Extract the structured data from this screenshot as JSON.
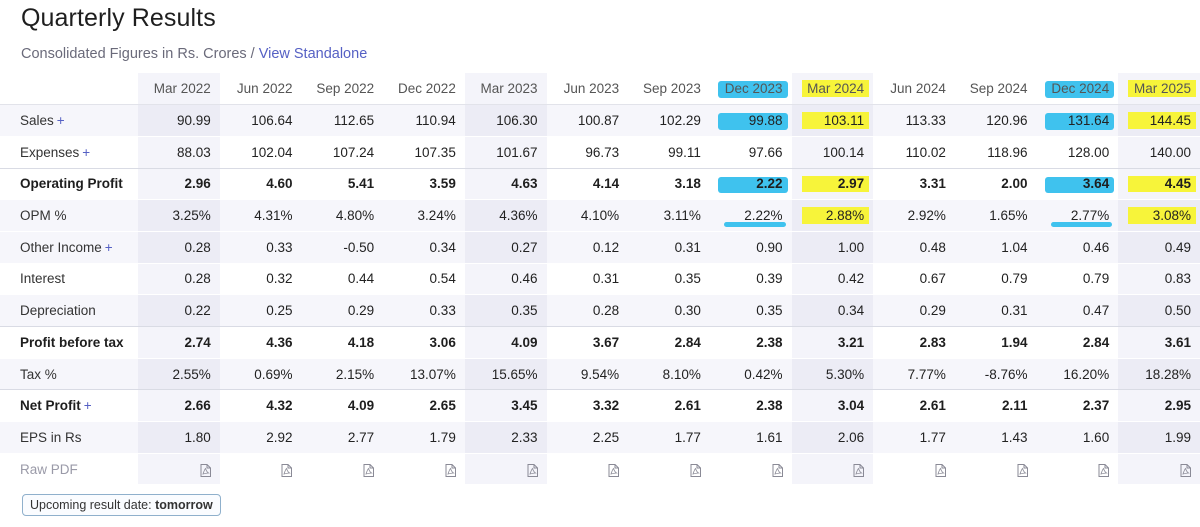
{
  "header": {
    "title": "Quarterly Results",
    "subtitle": "Consolidated Figures in Rs. Crores",
    "separator": "/",
    "view_standalone": "View Standalone"
  },
  "table": {
    "columns": [
      "Mar 2022",
      "Jun 2022",
      "Sep 2022",
      "Dec 2022",
      "Mar 2023",
      "Jun 2023",
      "Sep 2023",
      "Dec 2023",
      "Mar 2024",
      "Jun 2024",
      "Sep 2024",
      "Dec 2024",
      "Mar 2025"
    ],
    "rows": [
      {
        "label": "Sales",
        "plus": "+",
        "values": [
          "90.99",
          "106.64",
          "112.65",
          "110.94",
          "106.30",
          "100.87",
          "102.29",
          "99.88",
          "103.11",
          "113.33",
          "120.96",
          "131.64",
          "144.45"
        ]
      },
      {
        "label": "Expenses",
        "plus": "+",
        "values": [
          "88.03",
          "102.04",
          "107.24",
          "107.35",
          "101.67",
          "96.73",
          "99.11",
          "97.66",
          "100.14",
          "110.02",
          "118.96",
          "128.00",
          "140.00"
        ]
      },
      {
        "label": "Operating Profit",
        "values": [
          "2.96",
          "4.60",
          "5.41",
          "3.59",
          "4.63",
          "4.14",
          "3.18",
          "2.22",
          "2.97",
          "3.31",
          "2.00",
          "3.64",
          "4.45"
        ]
      },
      {
        "label": "OPM %",
        "values": [
          "3.25%",
          "4.31%",
          "4.80%",
          "3.24%",
          "4.36%",
          "4.10%",
          "3.11%",
          "2.22%",
          "2.88%",
          "2.92%",
          "1.65%",
          "2.77%",
          "3.08%"
        ]
      },
      {
        "label": "Other Income",
        "plus": "+",
        "values": [
          "0.28",
          "0.33",
          "-0.50",
          "0.34",
          "0.27",
          "0.12",
          "0.31",
          "0.90",
          "1.00",
          "0.48",
          "1.04",
          "0.46",
          "0.49"
        ]
      },
      {
        "label": "Interest",
        "values": [
          "0.28",
          "0.32",
          "0.44",
          "0.54",
          "0.46",
          "0.31",
          "0.35",
          "0.39",
          "0.42",
          "0.67",
          "0.79",
          "0.79",
          "0.83"
        ]
      },
      {
        "label": "Depreciation",
        "values": [
          "0.22",
          "0.25",
          "0.29",
          "0.33",
          "0.35",
          "0.28",
          "0.30",
          "0.35",
          "0.34",
          "0.29",
          "0.31",
          "0.47",
          "0.50"
        ]
      },
      {
        "label": "Profit before tax",
        "values": [
          "2.74",
          "4.36",
          "4.18",
          "3.06",
          "4.09",
          "3.67",
          "2.84",
          "2.38",
          "3.21",
          "2.83",
          "1.94",
          "2.84",
          "3.61"
        ]
      },
      {
        "label": "Tax %",
        "values": [
          "2.55%",
          "0.69%",
          "2.15%",
          "13.07%",
          "15.65%",
          "9.54%",
          "8.10%",
          "0.42%",
          "5.30%",
          "7.77%",
          "-8.76%",
          "16.20%",
          "18.28%"
        ]
      },
      {
        "label": "Net Profit",
        "plus": "+",
        "values": [
          "2.66",
          "4.32",
          "4.09",
          "2.65",
          "3.45",
          "3.32",
          "2.61",
          "2.38",
          "3.04",
          "2.61",
          "2.11",
          "2.37",
          "2.95"
        ]
      },
      {
        "label": "EPS in Rs",
        "values": [
          "1.80",
          "2.92",
          "2.77",
          "1.79",
          "2.33",
          "2.25",
          "1.77",
          "1.61",
          "2.06",
          "1.77",
          "1.43",
          "1.60",
          "1.99"
        ]
      },
      {
        "label": "Raw PDF",
        "icon": "pdf-file-icon"
      }
    ]
  },
  "upcoming": {
    "label": "Upcoming result date:",
    "value": "tomorrow"
  },
  "colors": {
    "accent": "#5560c4",
    "highlight_yellow": "#f7f43a",
    "highlight_blue": "#3fc2ee"
  }
}
